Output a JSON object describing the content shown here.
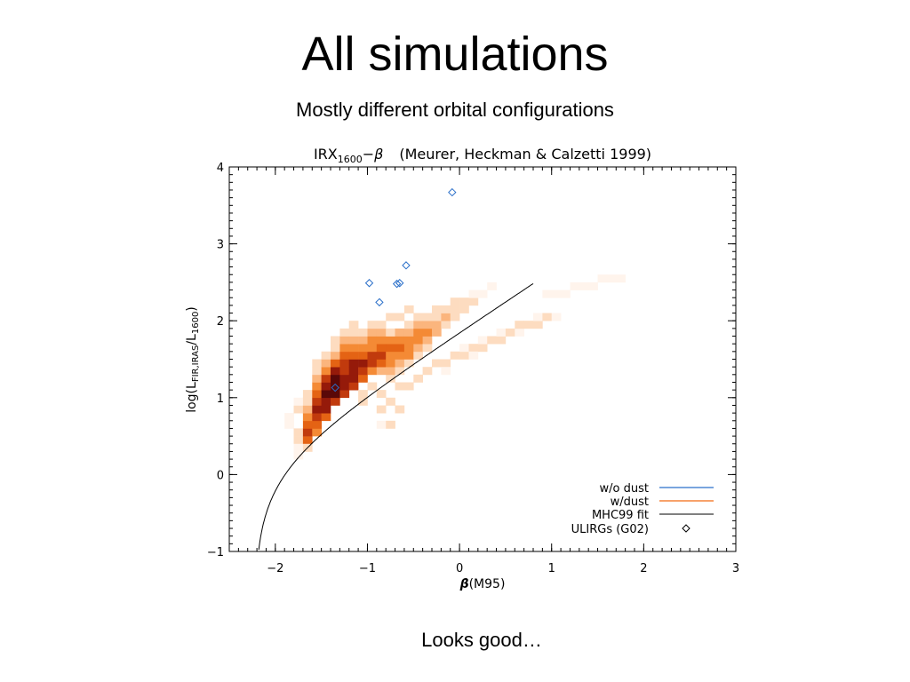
{
  "slide": {
    "title": "All simulations",
    "subtitle": "Mostly different orbital configurations",
    "footer": "Looks good…"
  },
  "chart_data": {
    "type": "heatmap",
    "title": "IRX1600−β   (Meurer, Heckman & Calzetti 1999)",
    "title_parts": {
      "irx": "IRX",
      "irx_sub": "1600",
      "dash_beta": "−β",
      "ref": "(Meurer, Heckman & Calzetti 1999)"
    },
    "xlabel": "β(M95)",
    "xlabel_parts": {
      "beta": "β",
      "rest": "(M95)"
    },
    "ylabel": "log(LFIR,IRAS/L1600)",
    "ylabel_parts": {
      "open": "log(L",
      "sub1": "FIR,IRAS",
      "mid": "/L",
      "sub2": "1600",
      "close": ")"
    },
    "xlim": [
      -2.5,
      3
    ],
    "ylim": [
      -1,
      4
    ],
    "x_ticks": [
      -2,
      -1,
      0,
      1,
      2,
      3
    ],
    "x_tick_labels": [
      "−2",
      "−1",
      "0",
      "1",
      "2",
      "3"
    ],
    "y_ticks": [
      -1,
      0,
      1,
      2,
      3,
      4
    ],
    "y_tick_labels": [
      "−1",
      "0",
      "1",
      "2",
      "3",
      "4"
    ],
    "grid": false,
    "legend_position": "bottom-right",
    "legend": [
      {
        "label": "w/o dust",
        "color": "#2a6fc9",
        "style": "line"
      },
      {
        "label": "w/dust",
        "color": "#f26a10",
        "style": "line"
      },
      {
        "label": "MHC99 fit",
        "color": "#000000",
        "style": "line"
      },
      {
        "label": "ULIRGs (G02)",
        "color": "#000000",
        "style": "diamond"
      }
    ],
    "heatmap_colors": [
      "#fff4ec",
      "#fddcc0",
      "#fbb57d",
      "#f48a35",
      "#e46314",
      "#c13a0d",
      "#951a0a",
      "#5a0808"
    ],
    "heatmap_cell": {
      "dx": 0.1,
      "dy": 0.1
    },
    "heatmap_cells": [
      [
        -1.9,
        0.6,
        0
      ],
      [
        -1.9,
        0.7,
        0
      ],
      [
        -1.8,
        0.5,
        1
      ],
      [
        -1.8,
        0.8,
        1
      ],
      [
        -1.8,
        0.9,
        0
      ],
      [
        -1.8,
        0.4,
        1
      ],
      [
        -1.8,
        0.3,
        0
      ],
      [
        -1.8,
        0.2,
        0
      ],
      [
        -1.7,
        0.4,
        4
      ],
      [
        -1.7,
        0.5,
        5
      ],
      [
        -1.7,
        0.6,
        4
      ],
      [
        -1.7,
        0.7,
        3
      ],
      [
        -1.7,
        0.8,
        2
      ],
      [
        -1.7,
        0.9,
        1
      ],
      [
        -1.7,
        1.0,
        1
      ],
      [
        -1.7,
        0.3,
        1
      ],
      [
        -1.6,
        0.5,
        3
      ],
      [
        -1.6,
        0.6,
        4
      ],
      [
        -1.6,
        0.7,
        5
      ],
      [
        -1.6,
        0.8,
        6
      ],
      [
        -1.6,
        0.9,
        5
      ],
      [
        -1.6,
        1.0,
        4
      ],
      [
        -1.6,
        1.1,
        3
      ],
      [
        -1.6,
        1.2,
        2
      ],
      [
        -1.6,
        1.3,
        1
      ],
      [
        -1.6,
        1.4,
        1
      ],
      [
        -1.5,
        0.7,
        4
      ],
      [
        -1.5,
        0.8,
        6
      ],
      [
        -1.5,
        0.9,
        6
      ],
      [
        -1.5,
        1.0,
        7
      ],
      [
        -1.5,
        1.1,
        6
      ],
      [
        -1.5,
        1.2,
        5
      ],
      [
        -1.5,
        1.3,
        3
      ],
      [
        -1.5,
        1.4,
        2
      ],
      [
        -1.5,
        1.5,
        1
      ],
      [
        -1.4,
        0.9,
        5
      ],
      [
        -1.4,
        1.0,
        7
      ],
      [
        -1.4,
        1.1,
        7
      ],
      [
        -1.4,
        1.2,
        7
      ],
      [
        -1.4,
        1.3,
        6
      ],
      [
        -1.4,
        1.4,
        4
      ],
      [
        -1.4,
        1.5,
        2
      ],
      [
        -1.4,
        1.6,
        1
      ],
      [
        -1.4,
        1.7,
        1
      ],
      [
        -1.3,
        1.0,
        5
      ],
      [
        -1.3,
        1.1,
        6
      ],
      [
        -1.3,
        1.2,
        6
      ],
      [
        -1.3,
        1.3,
        5
      ],
      [
        -1.3,
        1.4,
        5
      ],
      [
        -1.3,
        1.5,
        4
      ],
      [
        -1.3,
        1.6,
        3
      ],
      [
        -1.3,
        1.7,
        2
      ],
      [
        -1.3,
        1.8,
        1
      ],
      [
        -1.2,
        1.1,
        5
      ],
      [
        -1.2,
        1.2,
        6
      ],
      [
        -1.2,
        1.3,
        6
      ],
      [
        -1.2,
        1.4,
        6
      ],
      [
        -1.2,
        1.5,
        4
      ],
      [
        -1.2,
        1.6,
        3
      ],
      [
        -1.2,
        1.7,
        2
      ],
      [
        -1.2,
        1.8,
        1
      ],
      [
        -1.2,
        1.9,
        1
      ],
      [
        -1.1,
        1.2,
        4
      ],
      [
        -1.1,
        1.3,
        5
      ],
      [
        -1.1,
        1.4,
        6
      ],
      [
        -1.1,
        1.5,
        4
      ],
      [
        -1.1,
        1.6,
        3
      ],
      [
        -1.1,
        1.7,
        2
      ],
      [
        -1.1,
        1.8,
        1
      ],
      [
        -1.1,
        1.0,
        1
      ],
      [
        -1.1,
        0.9,
        1
      ],
      [
        -1.0,
        1.3,
        3
      ],
      [
        -1.0,
        1.4,
        5
      ],
      [
        -1.0,
        1.5,
        5
      ],
      [
        -1.0,
        1.6,
        3
      ],
      [
        -1.0,
        1.7,
        3
      ],
      [
        -1.0,
        1.8,
        2
      ],
      [
        -1.0,
        1.9,
        1
      ],
      [
        -1.0,
        1.1,
        1
      ],
      [
        -0.9,
        1.3,
        2
      ],
      [
        -0.9,
        1.4,
        4
      ],
      [
        -0.9,
        1.5,
        5
      ],
      [
        -0.9,
        1.6,
        4
      ],
      [
        -0.9,
        1.7,
        3
      ],
      [
        -0.9,
        1.8,
        2
      ],
      [
        -0.9,
        1.9,
        1
      ],
      [
        -0.9,
        1.0,
        1
      ],
      [
        -0.9,
        0.8,
        1
      ],
      [
        -0.9,
        0.6,
        0
      ],
      [
        -0.8,
        1.2,
        1
      ],
      [
        -0.8,
        1.3,
        2
      ],
      [
        -0.8,
        1.4,
        3
      ],
      [
        -0.8,
        1.5,
        3
      ],
      [
        -0.8,
        1.6,
        4
      ],
      [
        -0.8,
        1.7,
        3
      ],
      [
        -0.8,
        1.8,
        1
      ],
      [
        -0.8,
        2.0,
        1
      ],
      [
        -0.8,
        0.9,
        1
      ],
      [
        -0.8,
        0.6,
        1
      ],
      [
        -0.7,
        1.3,
        1
      ],
      [
        -0.7,
        1.4,
        2
      ],
      [
        -0.7,
        1.5,
        3
      ],
      [
        -0.7,
        1.6,
        4
      ],
      [
        -0.7,
        1.7,
        3
      ],
      [
        -0.7,
        1.8,
        2
      ],
      [
        -0.7,
        2.0,
        1
      ],
      [
        -0.7,
        1.1,
        1
      ],
      [
        -0.7,
        0.8,
        1
      ],
      [
        -0.6,
        1.4,
        1
      ],
      [
        -0.6,
        1.5,
        3
      ],
      [
        -0.6,
        1.6,
        3
      ],
      [
        -0.6,
        1.7,
        3
      ],
      [
        -0.6,
        1.8,
        2
      ],
      [
        -0.6,
        1.9,
        1
      ],
      [
        -0.6,
        2.1,
        1
      ],
      [
        -0.6,
        1.1,
        1
      ],
      [
        -0.5,
        1.5,
        1
      ],
      [
        -0.5,
        1.6,
        2
      ],
      [
        -0.5,
        1.7,
        3
      ],
      [
        -0.5,
        1.8,
        3
      ],
      [
        -0.5,
        1.9,
        2
      ],
      [
        -0.5,
        2.0,
        1
      ],
      [
        -0.5,
        1.2,
        1
      ],
      [
        -0.4,
        1.6,
        1
      ],
      [
        -0.4,
        1.7,
        2
      ],
      [
        -0.4,
        1.8,
        3
      ],
      [
        -0.4,
        1.9,
        2
      ],
      [
        -0.4,
        2.0,
        1
      ],
      [
        -0.4,
        1.3,
        1
      ],
      [
        -0.3,
        1.8,
        2
      ],
      [
        -0.3,
        1.9,
        2
      ],
      [
        -0.3,
        2.0,
        1
      ],
      [
        -0.3,
        2.1,
        1
      ],
      [
        -0.3,
        1.4,
        1
      ],
      [
        -0.2,
        1.9,
        1
      ],
      [
        -0.2,
        2.0,
        2
      ],
      [
        -0.2,
        2.1,
        1
      ],
      [
        -0.2,
        1.4,
        1
      ],
      [
        -0.2,
        1.3,
        0
      ],
      [
        -0.1,
        2.0,
        1
      ],
      [
        -0.1,
        2.1,
        1
      ],
      [
        -0.1,
        2.2,
        1
      ],
      [
        -0.1,
        1.5,
        1
      ],
      [
        0.0,
        2.1,
        1
      ],
      [
        0.0,
        2.2,
        1
      ],
      [
        0.0,
        1.5,
        1
      ],
      [
        0.0,
        1.6,
        0
      ],
      [
        0.1,
        2.2,
        1
      ],
      [
        0.1,
        2.3,
        0
      ],
      [
        0.1,
        1.6,
        1
      ],
      [
        0.1,
        1.5,
        0
      ],
      [
        0.2,
        2.3,
        0
      ],
      [
        0.2,
        1.6,
        1
      ],
      [
        0.2,
        1.7,
        0
      ],
      [
        0.3,
        1.7,
        1
      ],
      [
        0.3,
        2.4,
        0
      ],
      [
        0.4,
        1.7,
        1
      ],
      [
        0.4,
        1.8,
        0
      ],
      [
        0.5,
        1.8,
        1
      ],
      [
        0.6,
        1.8,
        0
      ],
      [
        0.6,
        1.9,
        1
      ],
      [
        0.7,
        1.9,
        1
      ],
      [
        0.8,
        1.9,
        1
      ],
      [
        0.8,
        2.0,
        0
      ],
      [
        0.9,
        2.0,
        1
      ],
      [
        1.0,
        2.0,
        0
      ],
      [
        0.9,
        2.3,
        0
      ],
      [
        1.0,
        2.3,
        0
      ],
      [
        1.1,
        2.3,
        0
      ],
      [
        1.2,
        2.4,
        0
      ],
      [
        1.3,
        2.4,
        0
      ],
      [
        1.4,
        2.4,
        0
      ],
      [
        1.5,
        2.5,
        0
      ],
      [
        1.6,
        2.5,
        0
      ],
      [
        1.7,
        2.5,
        0
      ]
    ],
    "series": [
      {
        "name": "ULIRGs (G02)",
        "type": "scatter",
        "marker": "diamond",
        "color": "#2a6fc9",
        "x": [
          -0.08,
          -0.58,
          -0.65,
          -0.68,
          -0.98,
          -0.87,
          -1.35
        ],
        "y": [
          3.67,
          2.72,
          2.49,
          2.48,
          2.49,
          2.24,
          1.13
        ]
      },
      {
        "name": "MHC99 fit",
        "type": "line",
        "color": "#000000",
        "formula": "log10(10^(0.4*(4.43+1.99*beta)) - 1) + 0.076",
        "x_range": [
          -2.2,
          0.8
        ]
      }
    ]
  }
}
